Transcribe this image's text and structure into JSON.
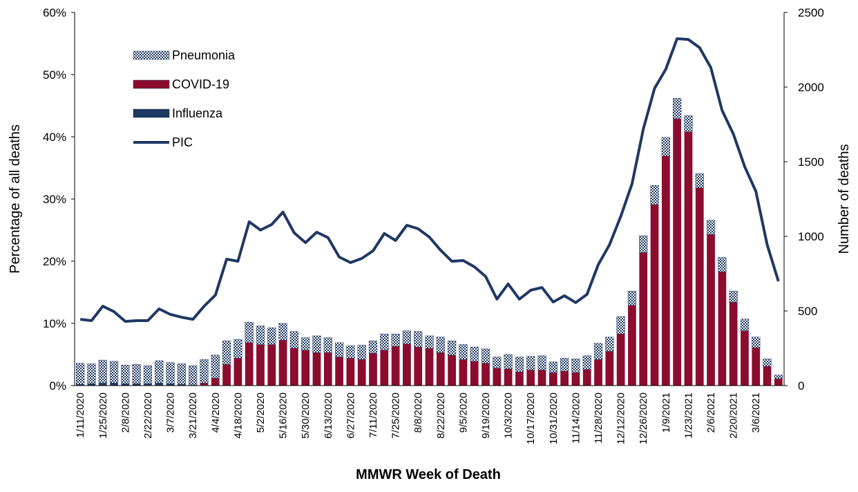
{
  "chart_data": {
    "type": "bar",
    "x_label": "MMWR Week of Death",
    "y_label": "Percentage of all deaths",
    "y2_label": "Number of deaths",
    "categories": [
      "1/11/2020",
      null,
      "1/25/2020",
      null,
      "2/8/2020",
      null,
      "2/22/2020",
      null,
      "3/7/2020",
      null,
      "3/21/2020",
      null,
      "4/4/2020",
      null,
      "4/18/2020",
      null,
      "5/2/2020",
      null,
      "5/16/2020",
      null,
      "5/30/2020",
      null,
      "6/13/2020",
      null,
      "6/27/2020",
      null,
      "7/11/2020",
      null,
      "7/25/2020",
      null,
      "8/8/2020",
      null,
      "8/22/2020",
      null,
      "9/5/2020",
      null,
      "9/19/2020",
      null,
      "10/3/2020",
      null,
      "10/17/2020",
      null,
      "10/31/2020",
      null,
      "11/14/2020",
      null,
      "11/28/2020",
      null,
      "12/12/2020",
      null,
      "12/26/2020",
      null,
      "1/9/2021",
      null,
      "1/23/2021",
      null,
      "2/6/2021",
      null,
      "2/20/2021",
      null,
      "3/6/2021",
      null,
      null
    ],
    "series": [
      {
        "name": "Pneumonia",
        "type": "bar",
        "color": "#1f3864",
        "values": [
          3.4,
          3.2,
          3.7,
          3.5,
          3.0,
          3.1,
          2.9,
          3.6,
          3.4,
          3.3,
          3.1,
          3.8,
          3.7,
          3.8,
          3.0,
          3.3,
          3.0,
          2.7,
          2.7,
          2.7,
          2.0,
          2.7,
          2.4,
          2.3,
          2.0,
          2.3,
          2.0,
          2.6,
          2.0,
          2.1,
          2.5,
          2.0,
          2.5,
          2.3,
          2.4,
          2.3,
          2.3,
          1.8,
          2.3,
          2.4,
          2.2,
          2.3,
          1.7,
          2.1,
          2.2,
          2.2,
          2.6,
          2.3,
          2.8,
          2.3,
          2.7,
          3.1,
          3.0,
          3.3,
          2.6,
          2.3,
          2.3,
          2.3,
          1.8,
          1.9,
          1.7,
          1.2,
          0.6
        ]
      },
      {
        "name": "COVID-19",
        "type": "bar",
        "color": "#8b0c2e",
        "values": [
          0,
          0,
          0,
          0,
          0,
          0,
          0,
          0,
          0,
          0,
          0,
          0.3,
          1.2,
          3.4,
          4.4,
          6.9,
          6.6,
          6.6,
          7.3,
          6.0,
          5.7,
          5.3,
          5.3,
          4.6,
          4.4,
          4.2,
          5.2,
          5.7,
          6.3,
          6.7,
          6.2,
          6.0,
          5.3,
          4.9,
          4.2,
          3.9,
          3.6,
          2.8,
          2.7,
          2.2,
          2.5,
          2.5,
          2.1,
          2.3,
          2.1,
          2.6,
          4.2,
          5.5,
          8.3,
          12.9,
          21.4,
          29.1,
          36.9,
          42.9,
          40.8,
          31.8,
          24.3,
          18.3,
          13.4,
          8.8,
          6.1,
          3.1,
          1.1
        ]
      },
      {
        "name": "Influenza",
        "type": "bar",
        "color": "#1f3864",
        "values": [
          0.2,
          0.3,
          0.4,
          0.4,
          0.3,
          0.3,
          0.3,
          0.4,
          0.3,
          0.2,
          0.1,
          0.1,
          0,
          0,
          0,
          0,
          0,
          0,
          0,
          0,
          0,
          0,
          0,
          0,
          0,
          0,
          0,
          0,
          0,
          0,
          0,
          0,
          0,
          0,
          0,
          0,
          0,
          0,
          0,
          0,
          0,
          0,
          0,
          0,
          0,
          0,
          0,
          0,
          0,
          0,
          0,
          0,
          0,
          0,
          0,
          0,
          0,
          0,
          0,
          0,
          0,
          0,
          0
        ]
      },
      {
        "name": "PIC",
        "type": "line",
        "axis": "y2",
        "color": "#1f3864",
        "values": [
          444,
          435,
          532,
          495,
          430,
          435,
          435,
          514,
          477,
          458,
          444,
          532,
          606,
          847,
          833,
          1097,
          1042,
          1079,
          1162,
          1023,
          958,
          1028,
          991,
          861,
          824,
          852,
          903,
          1019,
          972,
          1074,
          1051,
          995,
          907,
          833,
          838,
          796,
          731,
          579,
          681,
          579,
          639,
          657,
          560,
          602,
          556,
          611,
          810,
          944,
          1134,
          1352,
          1718,
          1991,
          2120,
          2324,
          2319,
          2264,
          2130,
          1843,
          1685,
          1468,
          1301,
          944,
          699
        ]
      }
    ],
    "stacked": true,
    "ylim": [
      0,
      60
    ],
    "yticks": [
      {
        "value": 0,
        "label": "0%"
      },
      {
        "value": 10,
        "label": "10%"
      },
      {
        "value": 20,
        "label": "20%"
      },
      {
        "value": 30,
        "label": "30%"
      },
      {
        "value": 40,
        "label": "40%"
      },
      {
        "value": 50,
        "label": "50%"
      },
      {
        "value": 60,
        "label": "60%"
      }
    ],
    "y2lim": [
      0,
      2500
    ],
    "y2ticks": [
      0,
      500,
      1000,
      1500,
      2000,
      2500
    ],
    "grid": false,
    "legend": "upper left"
  }
}
